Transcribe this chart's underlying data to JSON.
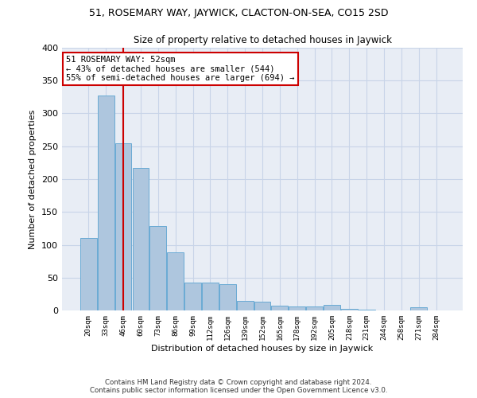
{
  "title": "51, ROSEMARY WAY, JAYWICK, CLACTON-ON-SEA, CO15 2SD",
  "subtitle": "Size of property relative to detached houses in Jaywick",
  "xlabel": "Distribution of detached houses by size in Jaywick",
  "ylabel": "Number of detached properties",
  "categories": [
    "20sqm",
    "33sqm",
    "46sqm",
    "60sqm",
    "73sqm",
    "86sqm",
    "99sqm",
    "112sqm",
    "126sqm",
    "139sqm",
    "152sqm",
    "165sqm",
    "178sqm",
    "192sqm",
    "205sqm",
    "218sqm",
    "231sqm",
    "244sqm",
    "258sqm",
    "271sqm",
    "284sqm"
  ],
  "values": [
    110,
    327,
    255,
    217,
    128,
    89,
    42,
    42,
    40,
    15,
    13,
    7,
    6,
    6,
    8,
    3,
    1,
    0,
    0,
    5,
    0
  ],
  "bar_color": "#aec6de",
  "bar_edge_color": "#6aaad4",
  "property_line_x": 2.0,
  "annotation_text": "51 ROSEMARY WAY: 52sqm\n← 43% of detached houses are smaller (544)\n55% of semi-detached houses are larger (694) →",
  "annotation_box_color": "#ffffff",
  "annotation_box_edge_color": "#cc0000",
  "vline_color": "#cc0000",
  "ylim": [
    0,
    400
  ],
  "yticks": [
    0,
    50,
    100,
    150,
    200,
    250,
    300,
    350,
    400
  ],
  "grid_color": "#c8d4e8",
  "bg_color": "#e8edf5",
  "title_fontsize": 9,
  "subtitle_fontsize": 8.5,
  "xlabel_fontsize": 8,
  "ylabel_fontsize": 8,
  "footer_line1": "Contains HM Land Registry data © Crown copyright and database right 2024.",
  "footer_line2": "Contains public sector information licensed under the Open Government Licence v3.0."
}
